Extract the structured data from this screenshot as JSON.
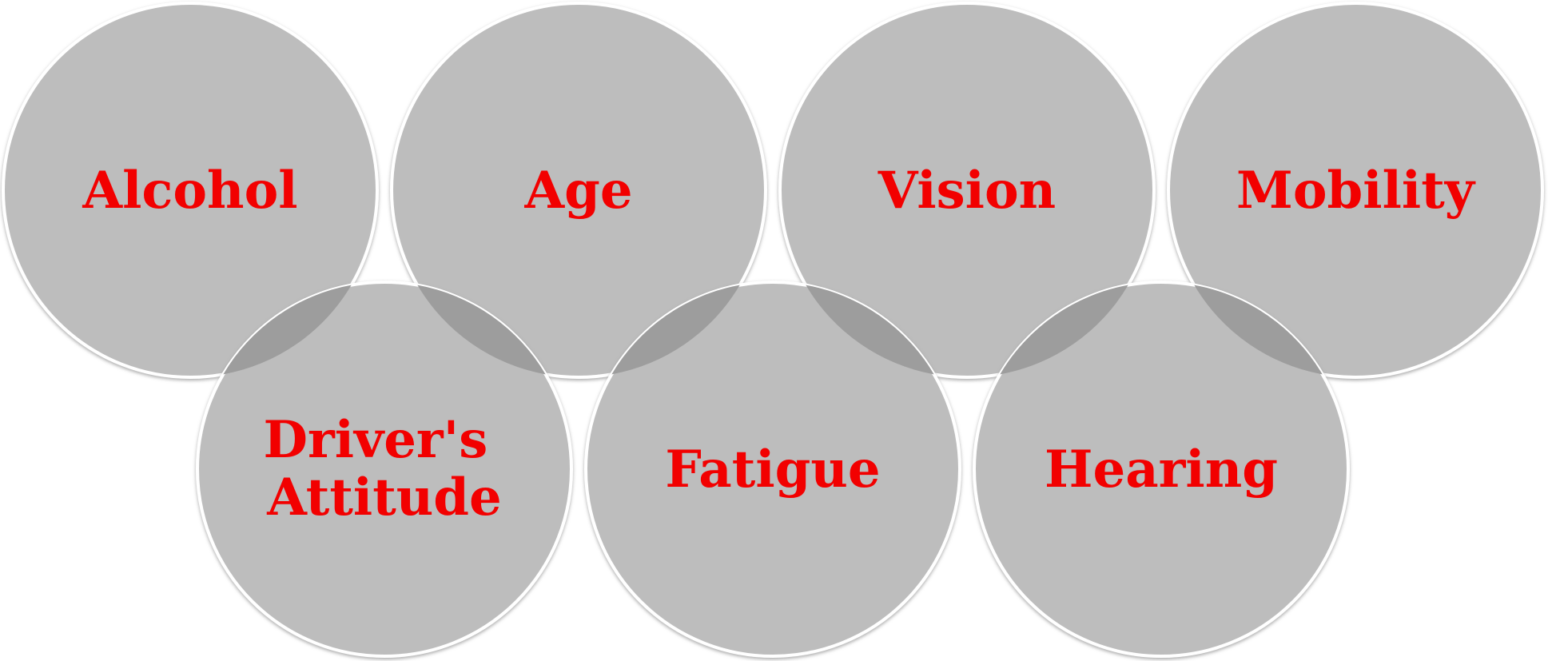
{
  "diagram": {
    "label_color": "#f20000",
    "circle_fill": "#bdbdbd",
    "overlap_fill": "#9d9d9d",
    "rim_color": "#ffffff",
    "rows": [
      {
        "items": [
          {
            "id": "alcohol",
            "label": [
              "Alcohol"
            ]
          },
          {
            "id": "age",
            "label": [
              "Age"
            ]
          },
          {
            "id": "vision",
            "label": [
              "Vision"
            ]
          },
          {
            "id": "mobility",
            "label": [
              "Mobility"
            ]
          }
        ]
      },
      {
        "items": [
          {
            "id": "drivers-attitude",
            "label": [
              "Driver's",
              "Attitude"
            ]
          },
          {
            "id": "fatigue",
            "label": [
              "Fatigue"
            ]
          },
          {
            "id": "hearing",
            "label": [
              "Hearing"
            ]
          }
        ]
      }
    ]
  }
}
